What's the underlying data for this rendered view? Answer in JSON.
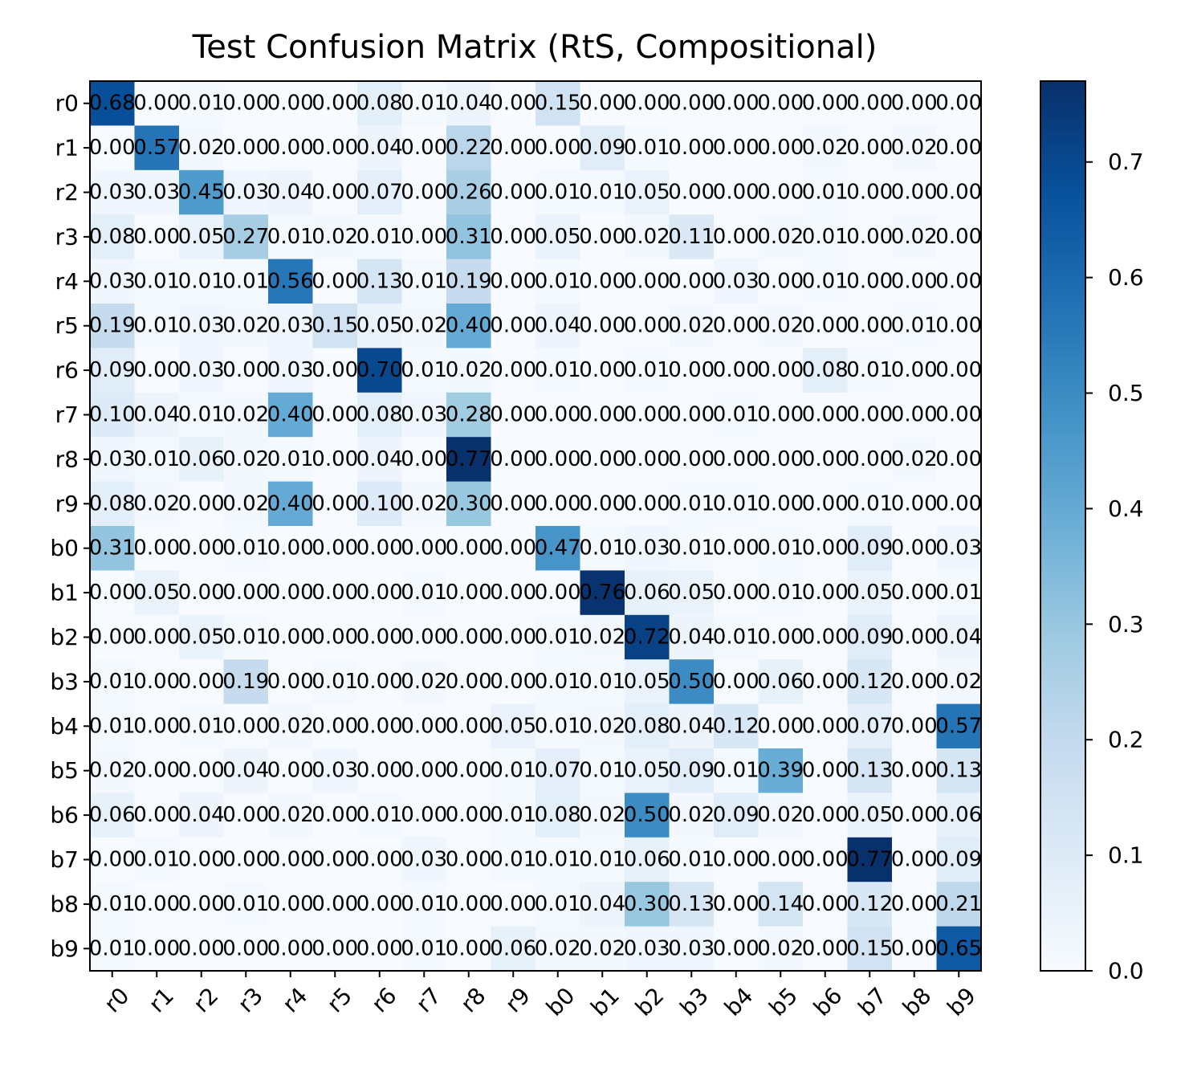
{
  "chart_data": {
    "type": "heatmap",
    "title": "Test Confusion Matrix (RtS, Compositional)",
    "xlabel": "",
    "ylabel": "",
    "row_labels": [
      "r0",
      "r1",
      "r2",
      "r3",
      "r4",
      "r5",
      "r6",
      "r7",
      "r8",
      "r9",
      "b0",
      "b1",
      "b2",
      "b3",
      "b4",
      "b5",
      "b6",
      "b7",
      "b8",
      "b9"
    ],
    "col_labels": [
      "r0",
      "r1",
      "r2",
      "r3",
      "r4",
      "r5",
      "r6",
      "r7",
      "r8",
      "r9",
      "b0",
      "b1",
      "b2",
      "b3",
      "b4",
      "b5",
      "b6",
      "b7",
      "b8",
      "b9"
    ],
    "values": [
      [
        0.68,
        0.0,
        0.01,
        0.0,
        0.0,
        0.0,
        0.08,
        0.01,
        0.04,
        0.0,
        0.15,
        0.0,
        0.0,
        0.0,
        0.0,
        0.0,
        0.0,
        0.0,
        0.0,
        0.0
      ],
      [
        0.0,
        0.57,
        0.02,
        0.0,
        0.0,
        0.0,
        0.04,
        0.0,
        0.22,
        0.0,
        0.0,
        0.09,
        0.01,
        0.0,
        0.0,
        0.0,
        0.02,
        0.0,
        0.02,
        0.0
      ],
      [
        0.03,
        0.03,
        0.45,
        0.03,
        0.04,
        0.0,
        0.07,
        0.0,
        0.26,
        0.0,
        0.01,
        0.01,
        0.05,
        0.0,
        0.0,
        0.0,
        0.01,
        0.0,
        0.0,
        0.0
      ],
      [
        0.08,
        0.0,
        0.05,
        0.27,
        0.01,
        0.02,
        0.01,
        0.0,
        0.31,
        0.0,
        0.05,
        0.0,
        0.02,
        0.11,
        0.0,
        0.02,
        0.01,
        0.0,
        0.02,
        0.0
      ],
      [
        0.03,
        0.01,
        0.01,
        0.01,
        0.56,
        0.0,
        0.13,
        0.01,
        0.19,
        0.0,
        0.01,
        0.0,
        0.0,
        0.0,
        0.03,
        0.0,
        0.01,
        0.0,
        0.0,
        0.0
      ],
      [
        0.19,
        0.01,
        0.03,
        0.02,
        0.03,
        0.15,
        0.05,
        0.02,
        0.4,
        0.0,
        0.04,
        0.0,
        0.0,
        0.02,
        0.0,
        0.02,
        0.0,
        0.0,
        0.01,
        0.0
      ],
      [
        0.09,
        0.0,
        0.03,
        0.0,
        0.03,
        0.0,
        0.7,
        0.01,
        0.02,
        0.0,
        0.01,
        0.0,
        0.01,
        0.0,
        0.0,
        0.0,
        0.08,
        0.01,
        0.0,
        0.0
      ],
      [
        0.1,
        0.04,
        0.01,
        0.02,
        0.4,
        0.0,
        0.08,
        0.03,
        0.28,
        0.0,
        0.0,
        0.0,
        0.0,
        0.0,
        0.01,
        0.0,
        0.0,
        0.0,
        0.0,
        0.0
      ],
      [
        0.03,
        0.01,
        0.06,
        0.02,
        0.01,
        0.0,
        0.04,
        0.0,
        0.77,
        0.0,
        0.0,
        0.0,
        0.0,
        0.0,
        0.0,
        0.0,
        0.0,
        0.0,
        0.02,
        0.0
      ],
      [
        0.08,
        0.02,
        0.0,
        0.02,
        0.4,
        0.0,
        0.1,
        0.02,
        0.3,
        0.0,
        0.0,
        0.0,
        0.0,
        0.01,
        0.01,
        0.0,
        0.0,
        0.01,
        0.0,
        0.0
      ],
      [
        0.31,
        0.0,
        0.0,
        0.01,
        0.0,
        0.0,
        0.0,
        0.0,
        0.0,
        0.0,
        0.47,
        0.01,
        0.03,
        0.01,
        0.0,
        0.01,
        0.0,
        0.09,
        0.0,
        0.03
      ],
      [
        0.0,
        0.05,
        0.0,
        0.0,
        0.0,
        0.0,
        0.0,
        0.01,
        0.0,
        0.0,
        0.0,
        0.76,
        0.06,
        0.05,
        0.0,
        0.01,
        0.0,
        0.05,
        0.0,
        0.01
      ],
      [
        0.0,
        0.0,
        0.05,
        0.01,
        0.0,
        0.0,
        0.0,
        0.0,
        0.0,
        0.0,
        0.01,
        0.02,
        0.72,
        0.04,
        0.01,
        0.0,
        0.0,
        0.09,
        0.0,
        0.04
      ],
      [
        0.01,
        0.0,
        0.0,
        0.19,
        0.0,
        0.01,
        0.0,
        0.02,
        0.0,
        0.0,
        0.01,
        0.01,
        0.05,
        0.5,
        0.0,
        0.06,
        0.0,
        0.12,
        0.0,
        0.02
      ],
      [
        0.01,
        0.0,
        0.01,
        0.0,
        0.02,
        0.0,
        0.0,
        0.0,
        0.0,
        0.05,
        0.01,
        0.02,
        0.08,
        0.04,
        0.12,
        0.0,
        0.0,
        0.07,
        0.0,
        0.57
      ],
      [
        0.02,
        0.0,
        0.0,
        0.04,
        0.0,
        0.03,
        0.0,
        0.0,
        0.0,
        0.01,
        0.07,
        0.01,
        0.05,
        0.09,
        0.01,
        0.39,
        0.0,
        0.13,
        0.0,
        0.13
      ],
      [
        0.06,
        0.0,
        0.04,
        0.0,
        0.02,
        0.0,
        0.01,
        0.0,
        0.0,
        0.01,
        0.08,
        0.02,
        0.5,
        0.02,
        0.09,
        0.02,
        0.0,
        0.05,
        0.0,
        0.06
      ],
      [
        0.0,
        0.01,
        0.0,
        0.0,
        0.0,
        0.0,
        0.0,
        0.03,
        0.0,
        0.01,
        0.01,
        0.01,
        0.06,
        0.01,
        0.0,
        0.0,
        0.0,
        0.77,
        0.0,
        0.09
      ],
      [
        0.01,
        0.0,
        0.0,
        0.01,
        0.0,
        0.0,
        0.0,
        0.01,
        0.0,
        0.0,
        0.01,
        0.04,
        0.3,
        0.13,
        0.0,
        0.14,
        0.0,
        0.12,
        0.0,
        0.21
      ],
      [
        0.01,
        0.0,
        0.0,
        0.0,
        0.0,
        0.0,
        0.0,
        0.01,
        0.0,
        0.06,
        0.02,
        0.02,
        0.03,
        0.03,
        0.0,
        0.02,
        0.0,
        0.15,
        0.0,
        0.65
      ]
    ],
    "value_format": "0.00",
    "colormap": "Blues",
    "colormap_stops": [
      "#f7fbff",
      "#deebf7",
      "#c6dbef",
      "#9ecae1",
      "#6baed6",
      "#4292c6",
      "#2171b5",
      "#08519c",
      "#08306b"
    ],
    "color_range": [
      0.0,
      0.77
    ],
    "colorbar_ticks": [
      "0.0",
      "0.1",
      "0.2",
      "0.3",
      "0.4",
      "0.5",
      "0.6",
      "0.7"
    ],
    "colorbar_tick_values": [
      0.0,
      0.1,
      0.2,
      0.3,
      0.4,
      0.5,
      0.6,
      0.7
    ],
    "x_tick_rotation_deg": 45,
    "grid": false,
    "legend": "colorbar-right"
  }
}
